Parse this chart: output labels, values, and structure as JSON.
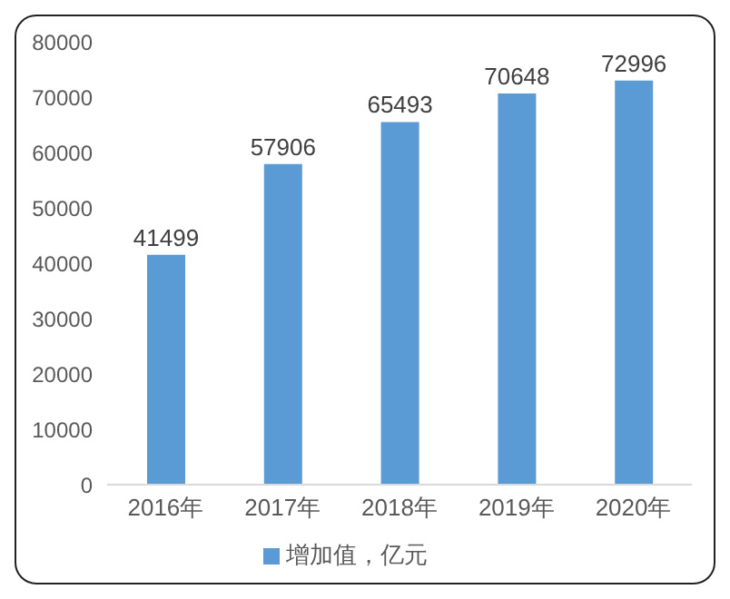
{
  "chart_data": {
    "type": "bar",
    "categories": [
      "2016年",
      "2017年",
      "2018年",
      "2019年",
      "2020年"
    ],
    "series": [
      {
        "name": "增加值，亿元",
        "color": "#5b9bd5",
        "values": [
          41499,
          57906,
          65493,
          70648,
          72996
        ]
      }
    ],
    "ylim": [
      0,
      80000
    ],
    "yticks": [
      0,
      10000,
      20000,
      30000,
      40000,
      50000,
      60000,
      70000,
      80000
    ],
    "grid": false,
    "legend": "bottom",
    "data_labels": true
  }
}
